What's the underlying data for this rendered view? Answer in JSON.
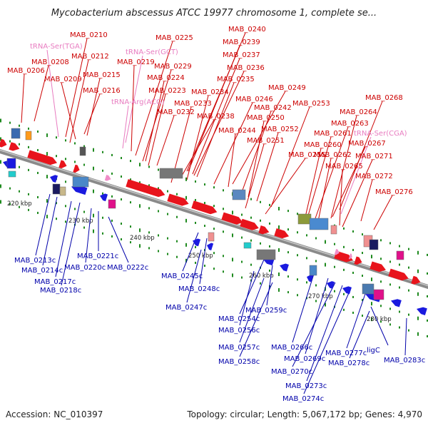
{
  "title": "Mycobacterium abscessus ATCC 19977 chromosome 1, complete se...",
  "footer": {
    "accession": "Accession: NC_010397",
    "info": "Topology: circular; Length: 5,067,172 bp; Genes: 4,970"
  },
  "colors": {
    "plus_gene": "#e8141c",
    "minus_gene": "#1a1adf",
    "trna": "#f08ec8",
    "axis": "#8a8a8a",
    "tick": "#1f8a1f",
    "label_plus": "#cc0000",
    "label_minus": "#0000aa",
    "label_trna": "#e87cc0"
  },
  "kbp_ticks": [
    "220 kbp",
    "230 kbp",
    "240 kbp",
    "250 kbp",
    "260 kbp",
    "270 kbp",
    "280 kbp"
  ],
  "labels_plus": [
    "MAB_0210",
    "tRNA-Ser(TGA)",
    "MAB_0208",
    "MAB_0212",
    "MAB_0206",
    "MAB_0209",
    "MAB_0215",
    "MAB_0216",
    "MAB_0225",
    "tRNA-Ser(GCT)",
    "MAB_0219",
    "MAB_0229",
    "MAB_0224",
    "MAB_0223",
    "tRNA-Arg(ACG)",
    "MAB_0232",
    "MAB_0240",
    "MAB_0239",
    "MAB_0237",
    "MAB_0236",
    "MAB_0235",
    "MAB_0234",
    "MAB_0233",
    "MAB_0238",
    "MAB_0249",
    "MAB_0246",
    "MAB_0242",
    "MAB_0250",
    "MAB_0244",
    "MAB_0252",
    "MAB_0251",
    "MAB_0253",
    "MAB_0255",
    "MAB_0268",
    "MAB_0264",
    "MAB_0263",
    "MAB_0261",
    "tRNA-Ser(CGA)",
    "MAB_0260",
    "MAB_0267",
    "MAB_0262",
    "MAB_0271",
    "MAB_0265",
    "MAB_0272",
    "MAB_0276"
  ],
  "labels_minus": [
    "MAB_0213c",
    "MAB_0214c",
    "MAB_0217c",
    "MAB_0218c",
    "MAB_0221c",
    "MAB_0220c",
    "MAB_0222c",
    "MAB_0245c",
    "MAB_0248c",
    "MAB_0247c",
    "MAB_0254c",
    "MAB_0259c",
    "MAB_0256c",
    "MAB_0257c",
    "MAB_0258c",
    "MAB_0266c",
    "MAB_0269c",
    "MAB_0270c",
    "MAB_0273c",
    "MAB_0274c",
    "MAB_0277c",
    "ligC",
    "MAB_0278c",
    "MAB_0283c"
  ]
}
